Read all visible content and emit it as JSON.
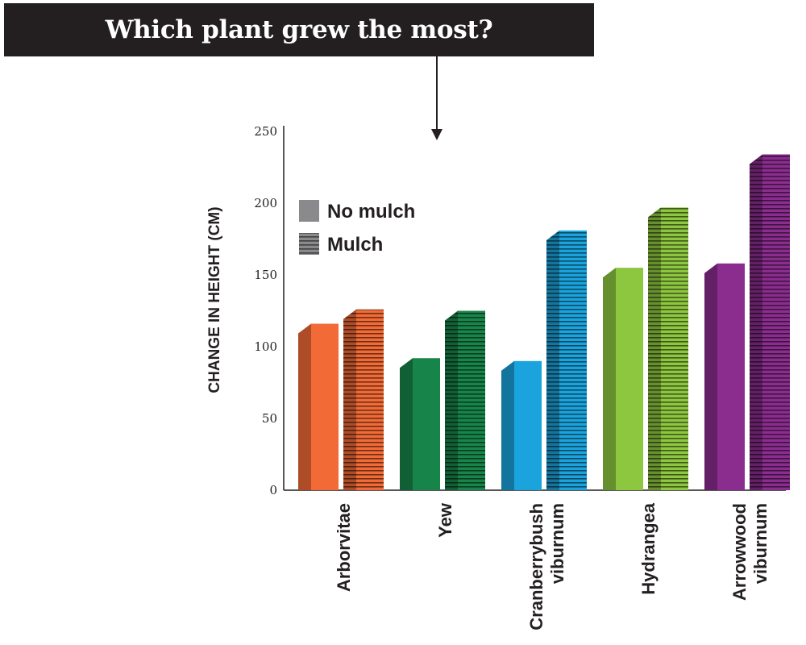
{
  "title": "Which plant grew the most?",
  "chart_data": {
    "type": "bar",
    "ylabel": "CHANGE IN HEIGHT (CM)",
    "ylim": [
      0,
      250
    ],
    "yticks": [
      0,
      50,
      100,
      150,
      200,
      250
    ],
    "categories": [
      [
        "Arborvitae"
      ],
      [
        "Yew"
      ],
      [
        "Cranberrybush",
        "viburnum"
      ],
      [
        "Hydrangea"
      ],
      [
        "Arrowwood",
        "viburnum"
      ]
    ],
    "category_colors": [
      "#f26a36",
      "#17854a",
      "#1aa3dc",
      "#8dc63f",
      "#8b2c8f"
    ],
    "series": [
      {
        "name": "No mulch",
        "values": [
          116,
          92,
          90,
          155,
          158
        ]
      },
      {
        "name": "Mulch",
        "values": [
          126,
          125,
          181,
          197,
          234
        ]
      }
    ],
    "legend": [
      {
        "label": "No mulch",
        "pattern": "solid",
        "color": "#8a8a8c"
      },
      {
        "label": "Mulch",
        "pattern": "striped",
        "color": "#8a8a8c"
      }
    ],
    "legend_position": "top-left",
    "grid": false
  }
}
